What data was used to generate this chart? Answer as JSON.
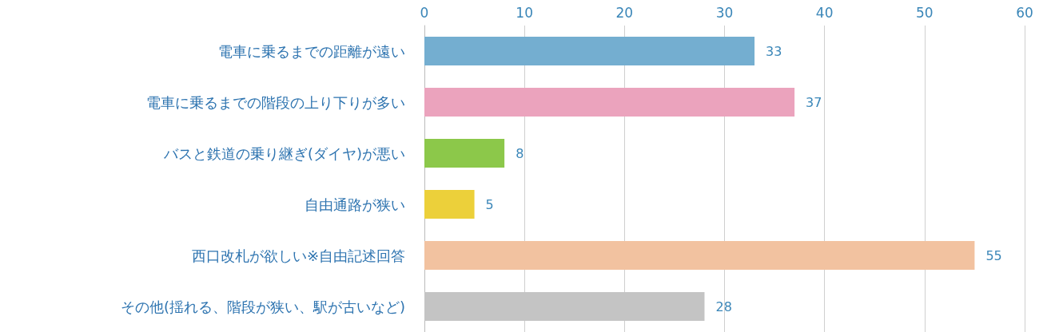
{
  "chart_data": {
    "type": "bar",
    "orientation": "horizontal",
    "categories": [
      "電車に乗るまでの距離が遠い",
      "電車に乗るまでの階段の上り下りが多い",
      "バスと鉄道の乗り継ぎ(ダイヤ)が悪い",
      "自由通路が狭い",
      "西口改札が欲しい※自由記述回答",
      "その他(揺れる、階段が狭い、駅が古いなど)"
    ],
    "values": [
      33,
      37,
      8,
      5,
      55,
      28
    ],
    "colors": [
      "#74aed0",
      "#eba3bd",
      "#8cc84a",
      "#ecd03a",
      "#f2c2a0",
      "#c4c4c4"
    ],
    "xlim": [
      0,
      60
    ],
    "xticks": [
      0,
      10,
      20,
      30,
      40,
      50,
      60
    ],
    "grid": "x",
    "data_labels": true
  }
}
